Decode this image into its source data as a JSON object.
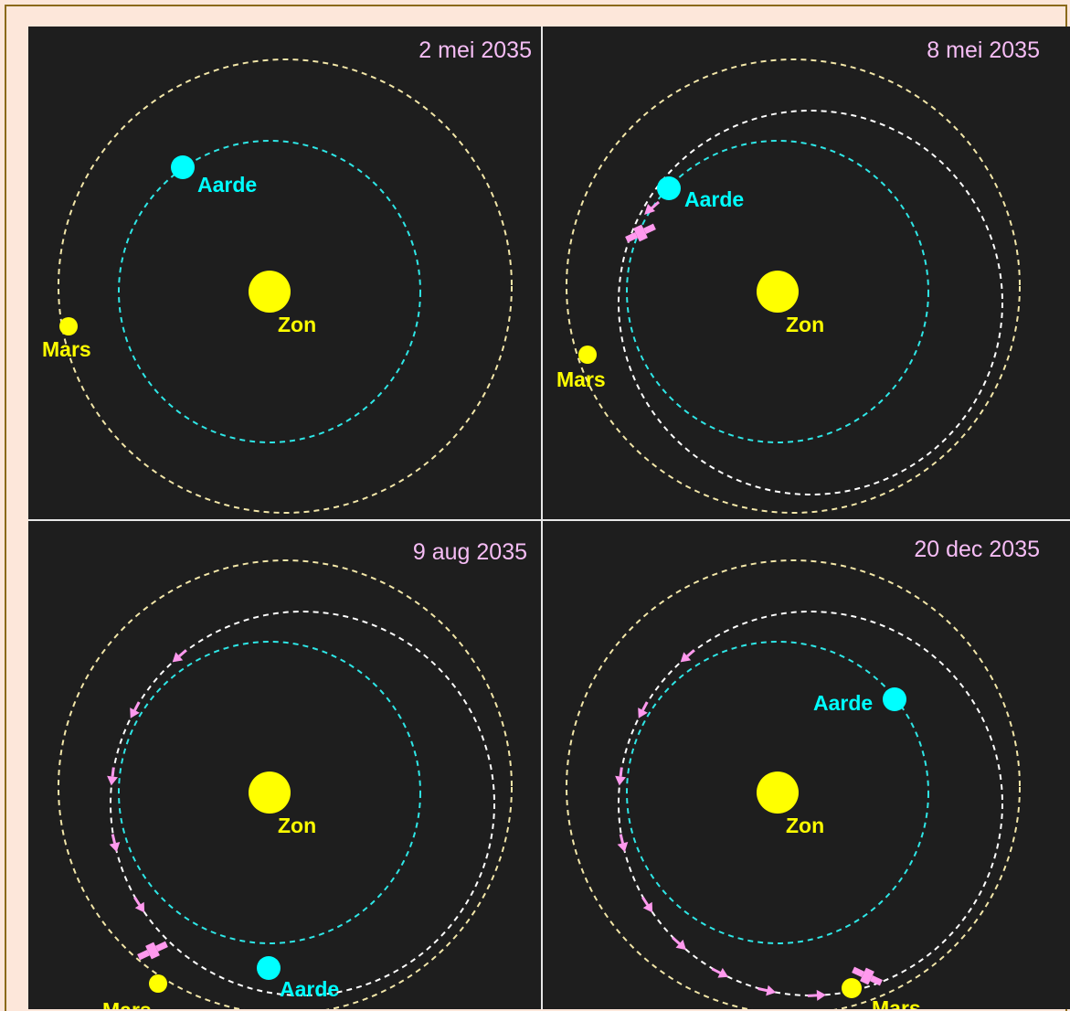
{
  "labels": {
    "sun": "Zon",
    "earth": "Aarde",
    "mars": "Mars"
  },
  "colors": {
    "background_frame": "#fde7da",
    "frame_border": "#8b6a1b",
    "panel": "#1e1e1e",
    "sun": "#ffff00",
    "earth": "#00ffff",
    "mars": "#ffff00",
    "earth_orbit": "#2ee6e6",
    "mars_orbit": "#f2e6a8",
    "transfer_orbit": "#ffffff",
    "spacecraft": "#ff99ee",
    "date_text": "#f6bdf5"
  },
  "panels": [
    {
      "date": "2 mei 2035"
    },
    {
      "date": "8 mei 2035"
    },
    {
      "date": "9 aug 2035"
    },
    {
      "date": "20 dec 2035"
    }
  ],
  "icons": {
    "spacecraft": "satellite-icon",
    "trajectory": "arrow-icon"
  }
}
